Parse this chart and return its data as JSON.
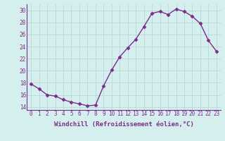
{
  "x": [
    0,
    1,
    2,
    3,
    4,
    5,
    6,
    7,
    8,
    9,
    10,
    11,
    12,
    13,
    14,
    15,
    16,
    17,
    18,
    19,
    20,
    21,
    22,
    23
  ],
  "y": [
    17.8,
    17.0,
    16.0,
    15.8,
    15.2,
    14.8,
    14.5,
    14.2,
    14.3,
    17.5,
    20.1,
    22.3,
    23.8,
    25.2,
    27.3,
    29.5,
    29.8,
    29.3,
    30.2,
    29.8,
    29.0,
    27.8,
    25.0,
    23.2
  ],
  "line_color": "#7b2d8b",
  "marker": "D",
  "marker_size": 2.5,
  "bg_color": "#d5eeee",
  "grid_color": "#b8d8d8",
  "xlabel": "Windchill (Refroidissement éolien,°C)",
  "xlim": [
    -0.5,
    23.5
  ],
  "ylim": [
    13.5,
    31.0
  ],
  "yticks": [
    14,
    16,
    18,
    20,
    22,
    24,
    26,
    28,
    30
  ],
  "xticks": [
    0,
    1,
    2,
    3,
    4,
    5,
    6,
    7,
    8,
    9,
    10,
    11,
    12,
    13,
    14,
    15,
    16,
    17,
    18,
    19,
    20,
    21,
    22,
    23
  ],
  "tick_label_size": 5.5,
  "xlabel_size": 6.5,
  "line_width": 1.0
}
